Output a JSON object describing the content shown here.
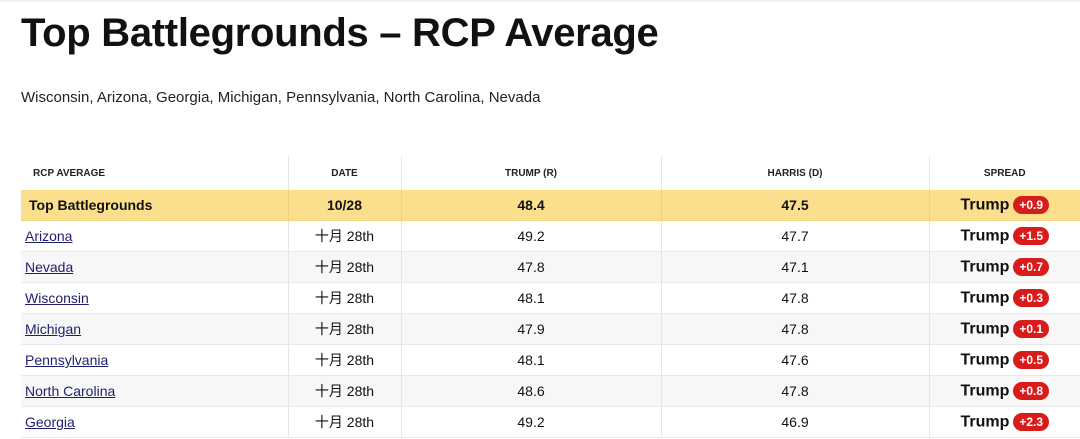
{
  "title": "Top Battlegrounds – RCP Average",
  "subtitle": "Wisconsin, Arizona, Georgia, Michigan, Pennsylvania, North Carolina, Nevada",
  "colors": {
    "summary_row": "#fcdf8c",
    "spread_badge": "#d81b1b"
  },
  "table": {
    "headers": {
      "name": "RCP AVERAGE",
      "date": "DATE",
      "trump": "TRUMP (R)",
      "harris": "HARRIS (D)",
      "spread": "SPREAD"
    },
    "summary": {
      "name": "Top Battlegrounds",
      "date": "10/28",
      "trump": "48.4",
      "harris": "47.5",
      "spread_name": "Trump",
      "spread_value": "+0.9"
    },
    "rows": [
      {
        "name": "Arizona",
        "date": "十月 28th",
        "trump": "49.2",
        "harris": "47.7",
        "spread_name": "Trump",
        "spread_value": "+1.5"
      },
      {
        "name": "Nevada",
        "date": "十月 28th",
        "trump": "47.8",
        "harris": "47.1",
        "spread_name": "Trump",
        "spread_value": "+0.7"
      },
      {
        "name": "Wisconsin",
        "date": "十月 28th",
        "trump": "48.1",
        "harris": "47.8",
        "spread_name": "Trump",
        "spread_value": "+0.3"
      },
      {
        "name": "Michigan",
        "date": "十月 28th",
        "trump": "47.9",
        "harris": "47.8",
        "spread_name": "Trump",
        "spread_value": "+0.1"
      },
      {
        "name": "Pennsylvania",
        "date": "十月 28th",
        "trump": "48.1",
        "harris": "47.6",
        "spread_name": "Trump",
        "spread_value": "+0.5"
      },
      {
        "name": "North Carolina",
        "date": "十月 28th",
        "trump": "48.6",
        "harris": "47.8",
        "spread_name": "Trump",
        "spread_value": "+0.8"
      },
      {
        "name": "Georgia",
        "date": "十月 28th",
        "trump": "49.2",
        "harris": "46.9",
        "spread_name": "Trump",
        "spread_value": "+2.3"
      }
    ]
  }
}
